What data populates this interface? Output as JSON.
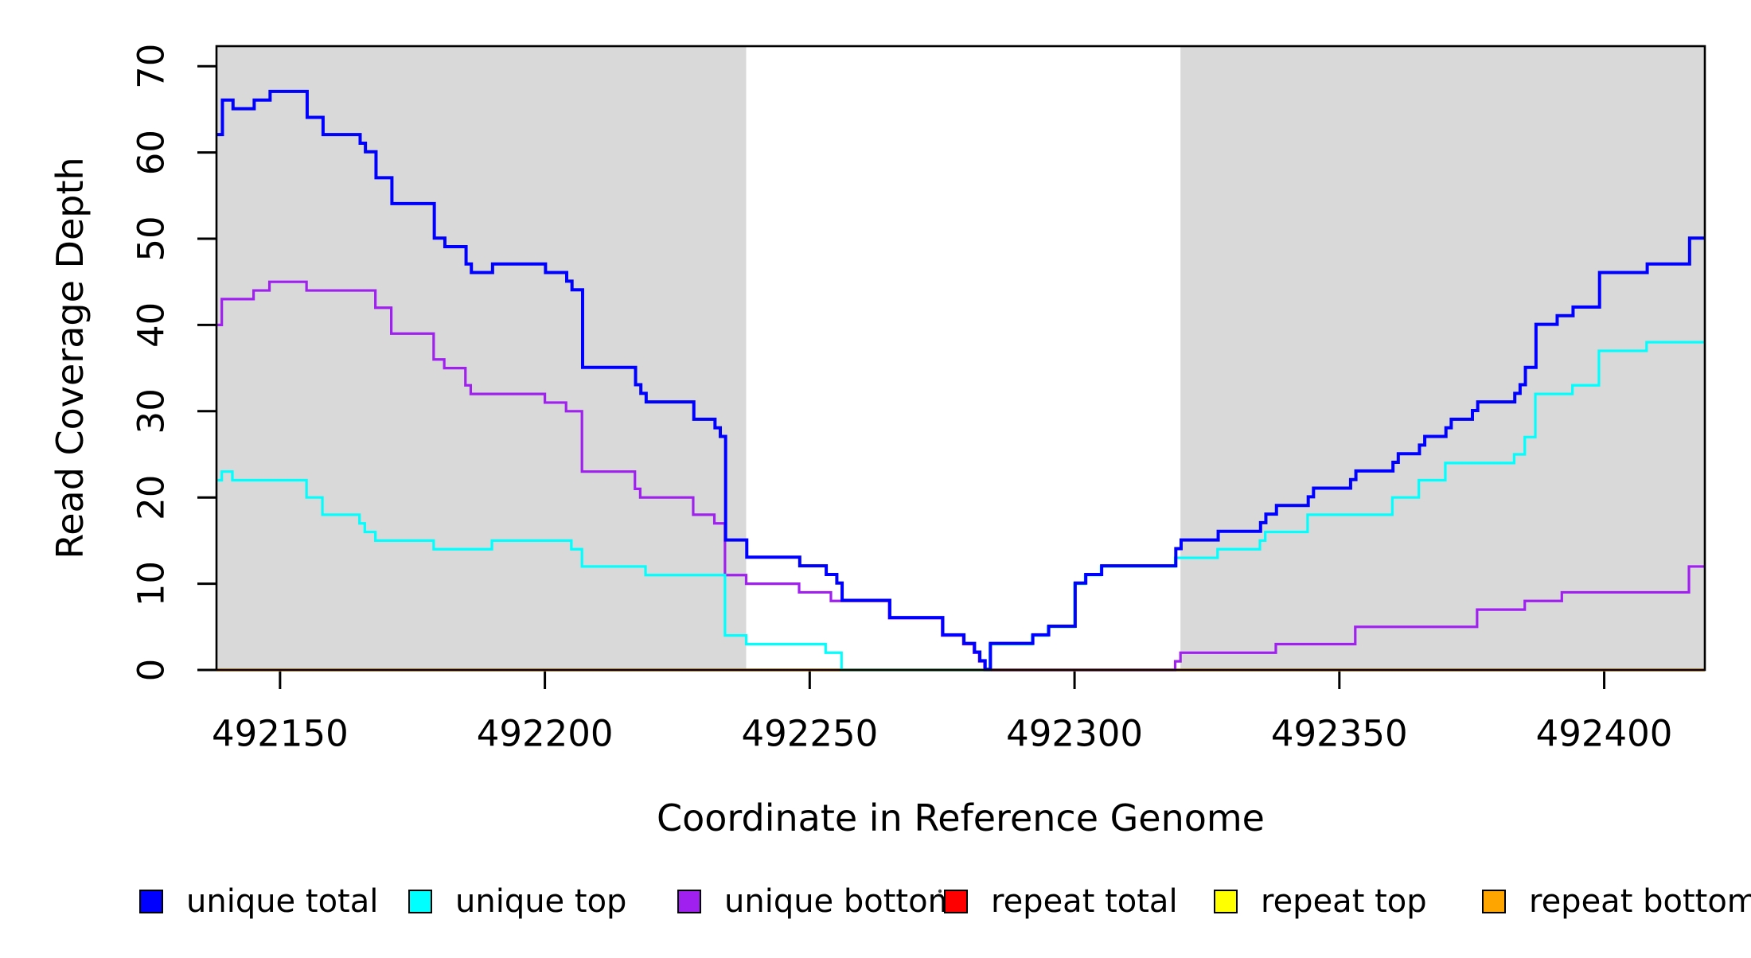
{
  "figure": {
    "y_axis_label": "Read Coverage Depth",
    "x_axis_label": "Coordinate in Reference Genome"
  },
  "legend": {
    "items": [
      {
        "label": "unique total",
        "color": "#0000FF"
      },
      {
        "label": "unique top",
        "color": "#00FFFF"
      },
      {
        "label": "unique bottom",
        "color": "#A020F0"
      },
      {
        "label": "repeat total",
        "color": "#FF0000"
      },
      {
        "label": "repeat top",
        "color": "#FFFF00"
      },
      {
        "label": "repeat bottom",
        "color": "#FFA500"
      }
    ]
  },
  "chart_data": {
    "type": "line",
    "subtype": "step",
    "title": "",
    "xlabel": "Coordinate in Reference Genome",
    "ylabel": "Read Coverage Depth",
    "xlim": [
      492138,
      492419
    ],
    "ylim": [
      0,
      72
    ],
    "x_ticks": [
      492150,
      492200,
      492250,
      492300,
      492350,
      492400
    ],
    "y_ticks": [
      0,
      10,
      20,
      30,
      40,
      50,
      60,
      70
    ],
    "grid": false,
    "legend_position": "bottom",
    "background_shading": {
      "color": "#D9D9D9",
      "meaning": "shaded genomic intervals",
      "x_ranges": [
        [
          492138,
          492238
        ],
        [
          492320,
          492419
        ]
      ]
    },
    "series": [
      {
        "name": "repeat total",
        "color": "#FF0000",
        "width": 3.2,
        "points": [
          [
            492138,
            0
          ]
        ]
      },
      {
        "name": "repeat top",
        "color": "#FFFF00",
        "width": 3.2,
        "points": [
          [
            492138,
            0
          ]
        ]
      },
      {
        "name": "repeat bottom",
        "color": "#FFA500",
        "width": 3.6,
        "points": [
          [
            492138,
            0
          ]
        ]
      },
      {
        "name": "unique bottom",
        "color": "#A020F0",
        "width": 3.2,
        "points": [
          [
            492138,
            40
          ],
          [
            492139,
            43
          ],
          [
            492145,
            44
          ],
          [
            492148,
            45
          ],
          [
            492155,
            44
          ],
          [
            492168,
            42
          ],
          [
            492171,
            39
          ],
          [
            492179,
            36
          ],
          [
            492181,
            35
          ],
          [
            492185,
            33
          ],
          [
            492186,
            32
          ],
          [
            492200,
            31
          ],
          [
            492204,
            30
          ],
          [
            492207,
            23
          ],
          [
            492217,
            21
          ],
          [
            492218,
            20
          ],
          [
            492228,
            18
          ],
          [
            492232,
            17
          ],
          [
            492234,
            11
          ],
          [
            492238,
            10
          ],
          [
            492248,
            9
          ],
          [
            492254,
            8
          ],
          [
            492265,
            6
          ],
          [
            492275,
            4
          ],
          [
            492279,
            3
          ],
          [
            492281,
            2
          ],
          [
            492282,
            1
          ],
          [
            492283,
            0
          ],
          [
            492319,
            1
          ],
          [
            492320,
            2
          ],
          [
            492338,
            3
          ],
          [
            492353,
            5
          ],
          [
            492376,
            7
          ],
          [
            492385,
            8
          ],
          [
            492392,
            9
          ],
          [
            492416,
            12
          ]
        ]
      },
      {
        "name": "unique top",
        "color": "#00FFFF",
        "width": 3.2,
        "points": [
          [
            492138,
            22
          ],
          [
            492139,
            23
          ],
          [
            492141,
            22
          ],
          [
            492155,
            20
          ],
          [
            492158,
            18
          ],
          [
            492165,
            17
          ],
          [
            492166,
            16
          ],
          [
            492168,
            15
          ],
          [
            492179,
            14
          ],
          [
            492190,
            15
          ],
          [
            492205,
            14
          ],
          [
            492207,
            12
          ],
          [
            492219,
            11
          ],
          [
            492234,
            4
          ],
          [
            492238,
            3
          ],
          [
            492253,
            2
          ],
          [
            492256,
            0
          ],
          [
            492284,
            3
          ],
          [
            492292,
            4
          ],
          [
            492295,
            5
          ],
          [
            492300,
            10
          ],
          [
            492302,
            11
          ],
          [
            492305,
            12
          ],
          [
            492319,
            13
          ],
          [
            492327,
            14
          ],
          [
            492335,
            15
          ],
          [
            492336,
            16
          ],
          [
            492344,
            18
          ],
          [
            492360,
            20
          ],
          [
            492365,
            22
          ],
          [
            492370,
            24
          ],
          [
            492383,
            25
          ],
          [
            492385,
            27
          ],
          [
            492387,
            32
          ],
          [
            492394,
            33
          ],
          [
            492399,
            37
          ],
          [
            492408,
            38
          ]
        ]
      },
      {
        "name": "unique total",
        "color": "#0000FF",
        "width": 4,
        "points": [
          [
            492138,
            62
          ],
          [
            492139,
            66
          ],
          [
            492141,
            65
          ],
          [
            492145,
            66
          ],
          [
            492148,
            67
          ],
          [
            492155,
            64
          ],
          [
            492158,
            62
          ],
          [
            492165,
            61
          ],
          [
            492166,
            60
          ],
          [
            492168,
            57
          ],
          [
            492171,
            54
          ],
          [
            492179,
            50
          ],
          [
            492181,
            49
          ],
          [
            492185,
            47
          ],
          [
            492186,
            46
          ],
          [
            492190,
            47
          ],
          [
            492200,
            46
          ],
          [
            492204,
            45
          ],
          [
            492205,
            44
          ],
          [
            492207,
            35
          ],
          [
            492217,
            33
          ],
          [
            492218,
            32
          ],
          [
            492219,
            31
          ],
          [
            492228,
            29
          ],
          [
            492232,
            28
          ],
          [
            492233,
            27
          ],
          [
            492234,
            15
          ],
          [
            492238,
            13
          ],
          [
            492248,
            12
          ],
          [
            492253,
            11
          ],
          [
            492255,
            10
          ],
          [
            492256,
            8
          ],
          [
            492265,
            6
          ],
          [
            492275,
            4
          ],
          [
            492279,
            3
          ],
          [
            492281,
            2
          ],
          [
            492282,
            1
          ],
          [
            492283,
            0
          ],
          [
            492284,
            3
          ],
          [
            492292,
            4
          ],
          [
            492295,
            5
          ],
          [
            492300,
            10
          ],
          [
            492302,
            11
          ],
          [
            492305,
            12
          ],
          [
            492319,
            14
          ],
          [
            492320,
            15
          ],
          [
            492327,
            16
          ],
          [
            492335,
            17
          ],
          [
            492336,
            18
          ],
          [
            492338,
            19
          ],
          [
            492344,
            20
          ],
          [
            492345,
            21
          ],
          [
            492352,
            22
          ],
          [
            492353,
            23
          ],
          [
            492360,
            24
          ],
          [
            492361,
            25
          ],
          [
            492365,
            26
          ],
          [
            492366,
            27
          ],
          [
            492370,
            28
          ],
          [
            492371,
            29
          ],
          [
            492375,
            30
          ],
          [
            492376,
            31
          ],
          [
            492383,
            32
          ],
          [
            492384,
            33
          ],
          [
            492385,
            35
          ],
          [
            492387,
            40
          ],
          [
            492391,
            41
          ],
          [
            492394,
            42
          ],
          [
            492399,
            46
          ],
          [
            492408,
            47
          ],
          [
            492416,
            50
          ]
        ]
      }
    ]
  }
}
